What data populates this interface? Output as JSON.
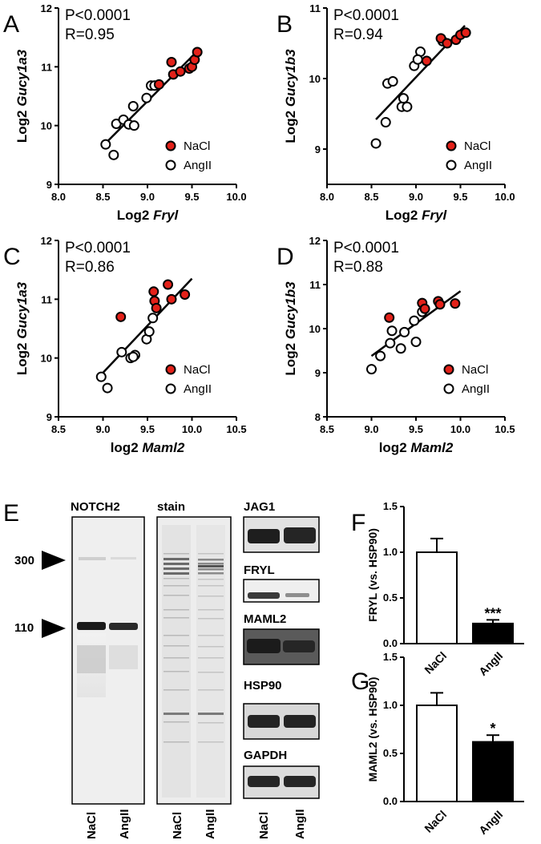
{
  "chart_data": [
    {
      "id": "A",
      "type": "scatter",
      "panel_letter": "A",
      "stats": [
        "P<0.0001",
        "R=0.95"
      ],
      "xlabel_prefix": "Log2 ",
      "xlabel_gene": "Fryl",
      "ylabel_prefix": "Log2 ",
      "ylabel_gene": "Gucy1a3",
      "xlim": [
        8.0,
        10.0
      ],
      "ylim": [
        9,
        12
      ],
      "xticks": [
        "8.0",
        "8.5",
        "9.0",
        "9.5",
        "10.0"
      ],
      "xtick_values": [
        8.0,
        8.5,
        9.0,
        9.5,
        10.0
      ],
      "yticks": [
        "9",
        "10",
        "11",
        "12"
      ],
      "ytick_values": [
        9,
        10,
        11,
        12
      ],
      "fit_line": {
        "x": [
          8.53,
          9.57
        ],
        "y": [
          9.7,
          11.28
        ]
      },
      "series": [
        {
          "name": "NaCl",
          "color": "#e32119",
          "x": [
            9.27,
            9.29,
            9.37,
            9.47,
            9.5,
            9.53,
            9.56,
            9.13
          ],
          "y": [
            11.08,
            10.87,
            10.92,
            10.97,
            11.0,
            11.12,
            11.25,
            10.7
          ]
        },
        {
          "name": "AngII",
          "color": "#ffffff",
          "x": [
            8.53,
            8.62,
            8.65,
            8.73,
            8.79,
            8.84,
            8.85,
            8.99,
            9.04,
            9.08
          ],
          "y": [
            9.68,
            9.5,
            10.03,
            10.1,
            10.02,
            10.33,
            10.0,
            10.47,
            10.68,
            10.68
          ]
        }
      ]
    },
    {
      "id": "B",
      "type": "scatter",
      "panel_letter": "B",
      "stats": [
        "P<0.0001",
        "R=0.94"
      ],
      "xlabel_prefix": "Log2 ",
      "xlabel_gene": "Fryl",
      "ylabel_prefix": "Log2 ",
      "ylabel_gene": "Gucy1b3",
      "xlim": [
        8.0,
        10.0
      ],
      "ylim": [
        8.5,
        11
      ],
      "xticks": [
        "8.0",
        "8.5",
        "9.0",
        "9.5",
        "10.0"
      ],
      "xtick_values": [
        8.0,
        8.5,
        9.0,
        9.5,
        10.0
      ],
      "yticks": [
        "9",
        "10",
        "11"
      ],
      "ytick_values": [
        9,
        10,
        11
      ],
      "fit_line": {
        "x": [
          8.55,
          9.55
        ],
        "y": [
          9.42,
          10.75
        ]
      },
      "series": [
        {
          "name": "NaCl",
          "color": "#e32119",
          "x": [
            9.12,
            9.28,
            9.35,
            9.45,
            9.5,
            9.56
          ],
          "y": [
            10.25,
            10.57,
            10.5,
            10.55,
            10.62,
            10.65
          ]
        },
        {
          "name": "AngII",
          "color": "#ffffff",
          "x": [
            8.55,
            8.66,
            8.68,
            8.74,
            8.84,
            8.86,
            8.98,
            9.05,
            9.02,
            9.3,
            8.9
          ],
          "y": [
            9.08,
            9.38,
            9.93,
            9.96,
            9.6,
            9.72,
            10.18,
            10.38,
            10.27,
            10.53,
            9.6
          ]
        }
      ]
    },
    {
      "id": "C",
      "type": "scatter",
      "panel_letter": "C",
      "stats": [
        "P<0.0001",
        "R=0.86"
      ],
      "xlabel_prefix": "log2 ",
      "xlabel_gene": "Maml2",
      "ylabel_prefix": "Log2 ",
      "ylabel_gene": "Gucy1a3",
      "xlim": [
        8.5,
        10.5
      ],
      "ylim": [
        9,
        12
      ],
      "xticks": [
        "8.5",
        "9.0",
        "9.5",
        "10.0",
        "10.5"
      ],
      "xtick_values": [
        8.5,
        9.0,
        9.5,
        10.0,
        10.5
      ],
      "yticks": [
        "9",
        "10",
        "11",
        "12"
      ],
      "ytick_values": [
        9,
        10,
        11,
        12
      ],
      "fit_line": {
        "x": [
          9.0,
          10.0
        ],
        "y": [
          9.75,
          11.35
        ]
      },
      "series": [
        {
          "name": "NaCl",
          "color": "#e32119",
          "x": [
            9.2,
            9.58,
            9.57,
            9.6,
            9.73,
            9.77,
            9.92
          ],
          "y": [
            10.7,
            10.97,
            11.13,
            10.85,
            11.25,
            11.0,
            11.08
          ]
        },
        {
          "name": "AngII",
          "color": "#ffffff",
          "x": [
            8.98,
            9.05,
            9.21,
            9.31,
            9.36,
            9.49,
            9.52,
            9.56,
            9.34
          ],
          "y": [
            9.68,
            9.49,
            10.1,
            10.0,
            10.05,
            10.32,
            10.45,
            10.68,
            10.02
          ]
        }
      ]
    },
    {
      "id": "D",
      "type": "scatter",
      "panel_letter": "D",
      "stats": [
        "P<0.0001",
        "R=0.88"
      ],
      "xlabel_prefix": "log2 ",
      "xlabel_gene": "Maml2",
      "ylabel_prefix": "Log2 ",
      "ylabel_gene": "Gucy1b3",
      "xlim": [
        8.5,
        10.5
      ],
      "ylim": [
        8,
        12
      ],
      "xticks": [
        "8.5",
        "9.0",
        "9.5",
        "10.0",
        "10.5"
      ],
      "xtick_values": [
        8.5,
        9.0,
        9.5,
        10.0,
        10.5
      ],
      "yticks": [
        "8",
        "9",
        "10",
        "11",
        "12"
      ],
      "ytick_values": [
        8,
        9,
        10,
        11,
        12
      ],
      "fit_line": {
        "x": [
          9.0,
          10.0
        ],
        "y": [
          9.38,
          10.85
        ]
      },
      "series": [
        {
          "name": "NaCl",
          "color": "#e32119",
          "x": [
            9.2,
            9.57,
            9.6,
            9.75,
            9.77,
            9.94
          ],
          "y": [
            10.25,
            10.58,
            10.45,
            10.62,
            10.55,
            10.57
          ]
        },
        {
          "name": "AngII",
          "color": "#ffffff",
          "x": [
            9.0,
            9.1,
            9.21,
            9.23,
            9.33,
            9.37,
            9.48,
            9.57,
            9.5
          ],
          "y": [
            9.08,
            9.38,
            9.67,
            9.95,
            9.55,
            9.92,
            10.18,
            10.38,
            9.7
          ]
        }
      ]
    },
    {
      "id": "F",
      "type": "bar",
      "panel_letter": "F",
      "ylabel": "FRYL (vs. HSP90)",
      "categories": [
        "NaCl",
        "AngII"
      ],
      "values": [
        1.0,
        0.22
      ],
      "errors": [
        0.15,
        0.04
      ],
      "bar_colors": [
        "#ffffff",
        "#000000"
      ],
      "significance": [
        "",
        "***"
      ],
      "ylim": [
        0,
        1.5
      ],
      "yticks": [
        "0.0",
        "0.5",
        "1.0",
        "1.5"
      ],
      "ytick_values": [
        0,
        0.5,
        1.0,
        1.5
      ]
    },
    {
      "id": "G",
      "type": "bar",
      "panel_letter": "G",
      "ylabel": "MAML2 (vs. HSP90)",
      "categories": [
        "NaCl",
        "AngII"
      ],
      "values": [
        1.0,
        0.62
      ],
      "errors": [
        0.13,
        0.07
      ],
      "bar_colors": [
        "#ffffff",
        "#000000"
      ],
      "significance": [
        "",
        "*"
      ],
      "ylim": [
        0,
        1.5
      ],
      "yticks": [
        "0.0",
        "0.5",
        "1.0",
        "1.5"
      ],
      "ytick_values": [
        0,
        0.5,
        1.0,
        1.5
      ]
    }
  ],
  "panel_e": {
    "letter": "E",
    "notch2_label": "NOTCH2",
    "stain_label": "stain",
    "size_markers": [
      "300",
      "110"
    ],
    "small_blots": [
      "JAG1",
      "FRYL",
      "MAML2",
      "HSP90",
      "GAPDH"
    ],
    "lane_labels": [
      "NaCl",
      "AngII"
    ]
  }
}
